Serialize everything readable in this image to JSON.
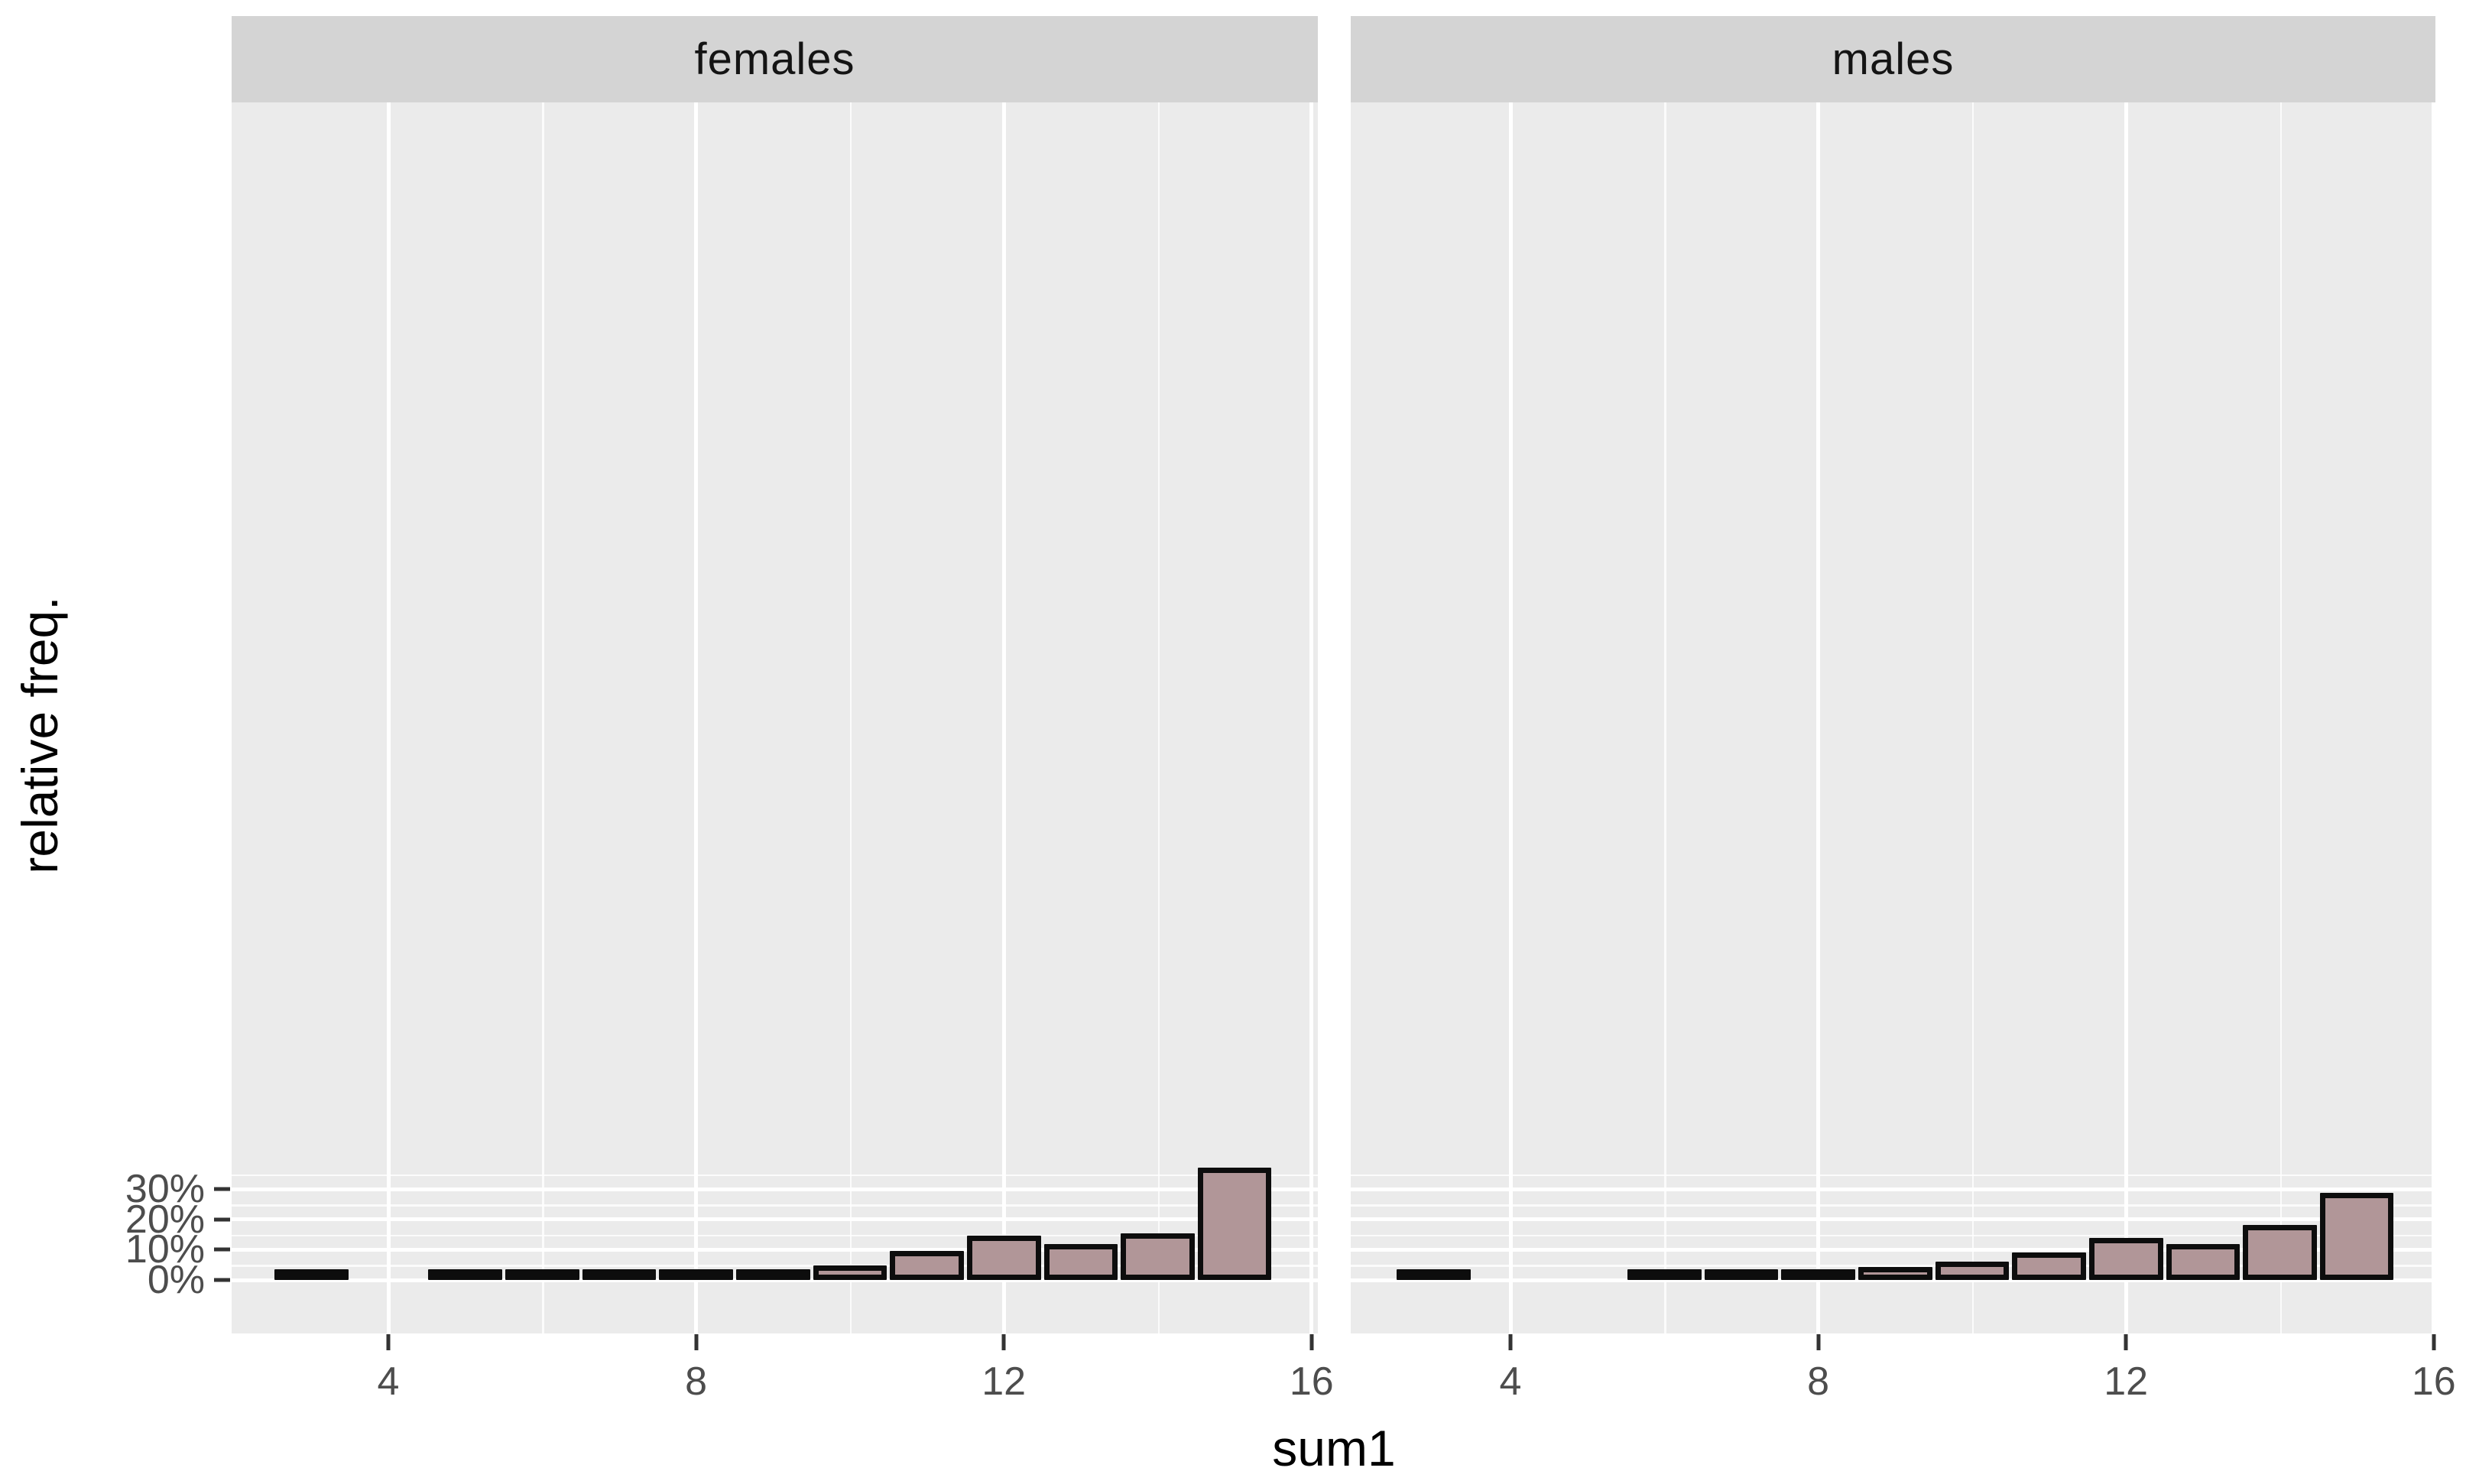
{
  "chart_data": {
    "type": "bar",
    "subtype": "faceted-histogram",
    "title": "",
    "xlabel": "sum1",
    "ylabel": "relative freq.",
    "x_ticks": [
      "4",
      "8",
      "12",
      "16"
    ],
    "x_tick_values": [
      4,
      8,
      12,
      16
    ],
    "x_minor_values": [
      6,
      10,
      14
    ],
    "y_ticks": [
      "0%",
      "10%",
      "20%",
      "30%"
    ],
    "y_tick_values": [
      0,
      10,
      20,
      30
    ],
    "y_minor_values": [
      5,
      15,
      25,
      35
    ],
    "xlim": [
      1.95,
      16.1
    ],
    "ylim": [
      -1.8,
      38.9
    ],
    "bar_width": 1,
    "grid": "on",
    "legend": "none",
    "facets": [
      {
        "label": "females",
        "x": [
          3,
          5,
          6,
          7,
          8,
          9,
          10,
          11,
          12,
          13,
          14,
          15
        ],
        "values": [
          0.3,
          0.4,
          0.55,
          1.2,
          0.95,
          3.4,
          4.8,
          9.6,
          14.6,
          12.0,
          15.5,
          37.1
        ]
      },
      {
        "label": "males",
        "x": [
          3,
          6,
          7,
          8,
          9,
          10,
          11,
          12,
          13,
          14,
          15
        ],
        "values": [
          0.4,
          1.75,
          2.2,
          3.0,
          4.4,
          6.0,
          9.2,
          14.0,
          12.0,
          18.3,
          28.7
        ]
      }
    ],
    "colors": {
      "bar_fill": "#B19698",
      "bar_stroke": "#0D0D0D",
      "panel_bg": "#EBEBEB",
      "strip_bg": "#D4D4D4",
      "gridline": "#FFFFFF",
      "tick_label": "#4D4D4D",
      "axis_title": "#000000",
      "strip_text": "#141414"
    }
  }
}
